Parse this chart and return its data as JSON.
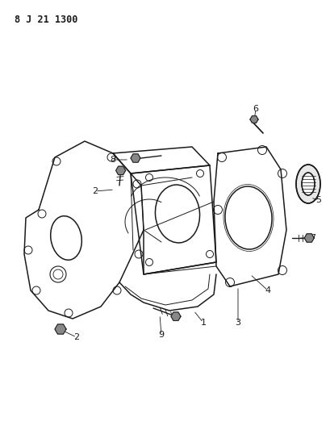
{
  "title": "8 J 21 1300",
  "bg_color": "#ffffff",
  "fig_width": 4.09,
  "fig_height": 5.33,
  "dpi": 100,
  "line_color": "#1a1a1a",
  "title_fontsize": 8.5,
  "label_fontsize": 8.0
}
